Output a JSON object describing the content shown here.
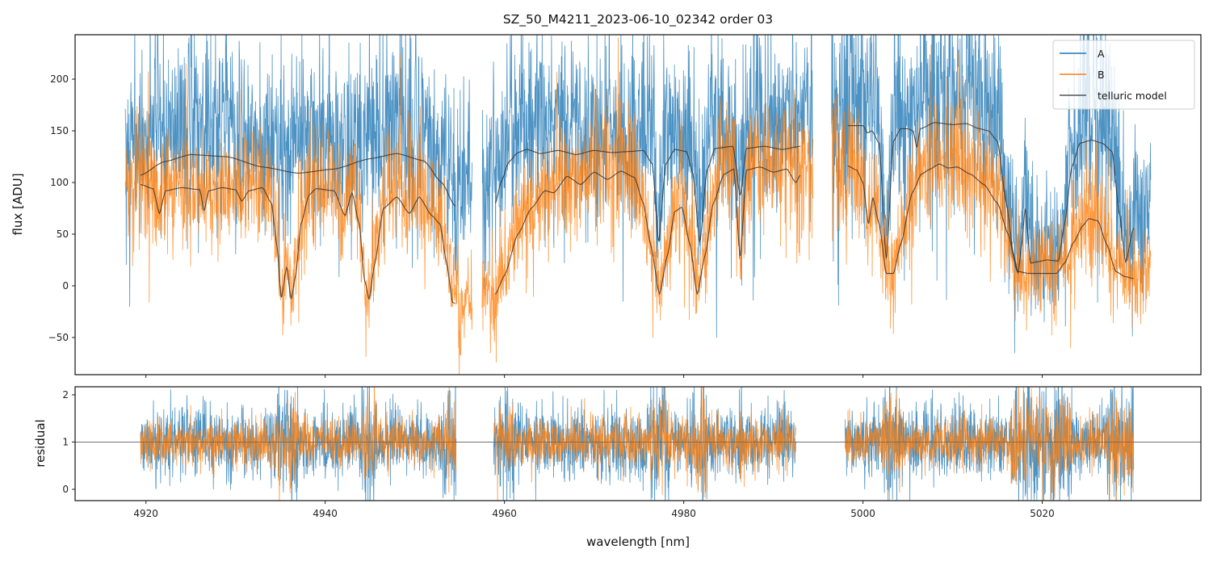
{
  "chart_data": [
    {
      "panel": "flux",
      "type": "line",
      "title": "SZ_50_M4211_2023-06-10_02342  order 03",
      "xlabel": "",
      "ylabel": "flux [ADU]",
      "xlim": [
        4912.1,
        5037.7
      ],
      "ylim": [
        -86,
        243
      ],
      "xticks": [
        4920,
        4940,
        4960,
        4980,
        5000,
        5020
      ],
      "xtick_labels_visible": false,
      "yticks": [
        -50,
        0,
        50,
        100,
        150,
        200
      ],
      "ytick_labels": [
        "−50",
        "0",
        "50",
        "100",
        "150",
        "200"
      ],
      "grid": false,
      "legend": {
        "placement": "top-right",
        "entries": [
          {
            "label": "A",
            "color": "#1f77b4"
          },
          {
            "label": "B",
            "color": "#ff7f0e"
          },
          {
            "label": "telluric model",
            "color": "#333333"
          }
        ]
      },
      "segments": [
        {
          "x_range": [
            4917.7,
            4956.4
          ]
        },
        {
          "x_range": [
            4957.5,
            4994.4
          ]
        },
        {
          "x_range": [
            4996.5,
            5032.1
          ]
        }
      ],
      "series": [
        {
          "name": "A",
          "color": "#1f77b4",
          "description": "noisy observed spectrum, typical flux ~80-200 ADU with deep drops inside telluric bands",
          "noise_sigma": 42
        },
        {
          "name": "B",
          "color": "#ff7f0e",
          "description": "noisy observed spectrum, typical flux ~40-150 ADU, follows telluric model B",
          "noise_sigma": 32
        },
        {
          "name": "telluric model (A)",
          "color": "#333333",
          "segments": [
            {
              "x": [
                4919.4,
                4922,
                4925,
                4929,
                4933,
                4937,
                4941,
                4945,
                4948,
                4951,
                4953,
                4954.5
              ],
              "y": [
                107,
                120,
                127,
                125,
                115,
                109,
                113,
                123,
                128,
                121,
                100,
                77
              ]
            },
            {
              "x": [
                4959.0,
                4959.6,
                4960.5,
                4961.5,
                4962.5,
                4964,
                4966,
                4968,
                4970,
                4972,
                4974,
                4975.5,
                4976.5,
                4977.2,
                4978,
                4979,
                4980.3,
                4981.0,
                4981.8,
                4982.6,
                4983.5,
                4985.5,
                4986.3,
                4987,
                4989,
                4991,
                4993.0
              ],
              "y": [
                80,
                100,
                120,
                129,
                132,
                128,
                131,
                127,
                131,
                129,
                130,
                131,
                118,
                42,
                118,
                132,
                130,
                110,
                42,
                112,
                133,
                135,
                87,
                133,
                135,
                132,
                135
              ]
            },
            {
              "x": [
                4998.3,
                5000,
                5000.5,
                5001,
                5001.8,
                5002.6,
                5003.4,
                5004.2,
                5005.0,
                5005.6,
                5006.0,
                5006.4,
                5008,
                5010,
                5011.5,
                5013,
                5014,
                5015,
                5016,
                5016.8,
                5017.3,
                5017.7,
                5018.1,
                5018.7,
                5019.3,
                5020.5,
                5021.8,
                5022.5,
                5023.3,
                5024.2,
                5025.5,
                5026.7,
                5027.8,
                5028.6,
                5029.3,
                5030.2
              ],
              "y": [
                155,
                155,
                148,
                150,
                138,
                25,
                140,
                152,
                152,
                150,
                134,
                152,
                158,
                156,
                157,
                152,
                150,
                140,
                80,
                30,
                12,
                40,
                75,
                22,
                23,
                25,
                24,
                60,
                115,
                138,
                141,
                138,
                130,
                70,
                23,
                56
              ]
            }
          ]
        },
        {
          "name": "telluric model (B)",
          "color": "#333333",
          "segments": [
            {
              "x": [
                4919.4,
                4920.8,
                4921.5,
                4922.2,
                4924,
                4926,
                4926.5,
                4927,
                4928.5,
                4930.0,
                4930.7,
                4931.5,
                4933,
                4934.0,
                4934.6,
                4935.1,
                4935.7,
                4936.2,
                4936.7,
                4937.3,
                4938.2,
                4939,
                4941,
                4942.2,
                4943.0,
                4943.8,
                4944.4,
                4944.9,
                4945.5,
                4946.5,
                4948,
                4949.4,
                4950.5,
                4951.9,
                4952.8,
                4953.6,
                4954.2,
                4954.5
              ],
              "y": [
                98,
                94,
                70,
                92,
                95,
                93,
                73,
                92,
                95,
                93,
                82,
                92,
                95,
                80,
                40,
                -12,
                18,
                -13,
                10,
                60,
                88,
                94,
                92,
                68,
                90,
                60,
                5,
                -13,
                20,
                75,
                86,
                70,
                86,
                68,
                60,
                20,
                -16,
                -17
              ]
            },
            {
              "x": [
                4959.0,
                4960,
                4961.5,
                4963,
                4964.5,
                4965.5,
                4967,
                4968.5,
                4970,
                4971.5,
                4973,
                4974.5,
                4975.5,
                4976.3,
                4977.3,
                4978.2,
                4979,
                4979.8,
                4980.7,
                4981.5,
                4982.4,
                4983.3,
                4984.5,
                4985.6,
                4986.3,
                4987.0,
                4988.5,
                4990,
                4991.5,
                4992.5,
                4993.0
              ],
              "y": [
                -8,
                10,
                50,
                75,
                92,
                90,
                106,
                98,
                110,
                103,
                111,
                105,
                80,
                40,
                -8,
                30,
                72,
                76,
                40,
                -8,
                30,
                80,
                108,
                113,
                27,
                112,
                115,
                110,
                113,
                100,
                107
              ]
            },
            {
              "x": [
                4998.3,
                4999.3,
                5000.0,
                5000.6,
                5001.1,
                5001.8,
                5002.6,
                5003.4,
                5004.2,
                5005.5,
                5006.5,
                5007.5,
                5008.5,
                5009.5,
                5010.5,
                5012,
                5013.5,
                5015,
                5016.2,
                5017.2,
                5018.5,
                5020,
                5021.6,
                5022.5,
                5023.5,
                5024.5,
                5025.2,
                5026.2,
                5027.2,
                5028.2,
                5029.2,
                5030.2
              ],
              "y": [
                116,
                112,
                100,
                60,
                85,
                60,
                12,
                12,
                40,
                90,
                108,
                113,
                118,
                114,
                115,
                108,
                98,
                80,
                50,
                14,
                12,
                12,
                12,
                22,
                42,
                58,
                65,
                63,
                40,
                14,
                9,
                7
              ]
            }
          ]
        }
      ]
    },
    {
      "panel": "residual",
      "type": "line",
      "title": "",
      "xlabel": "wavelength [nm]",
      "ylabel": "residual",
      "xlim": [
        4912.1,
        5037.7
      ],
      "ylim": [
        -0.24,
        2.17
      ],
      "xticks": [
        4920,
        4940,
        4960,
        4980,
        5000,
        5020
      ],
      "xtick_labels": [
        "4920",
        "4940",
        "4960",
        "4980",
        "5000",
        "5020"
      ],
      "yticks": [
        0,
        1,
        2
      ],
      "ytick_labels": [
        "0",
        "1",
        "2"
      ],
      "grid": false,
      "reference_line": {
        "y": 1,
        "color": "#808080"
      },
      "segments": [
        {
          "x_range": [
            4919.4,
            4954.6
          ]
        },
        {
          "x_range": [
            4958.8,
            4992.5
          ]
        },
        {
          "x_range": [
            4998.0,
            5030.2
          ]
        }
      ],
      "series": [
        {
          "name": "A",
          "color": "#1f77b4",
          "center": 1.0,
          "noise_sigma": 0.38
        },
        {
          "name": "B",
          "color": "#ff7f0e",
          "center": 1.0,
          "noise_sigma": 0.27
        }
      ]
    }
  ]
}
